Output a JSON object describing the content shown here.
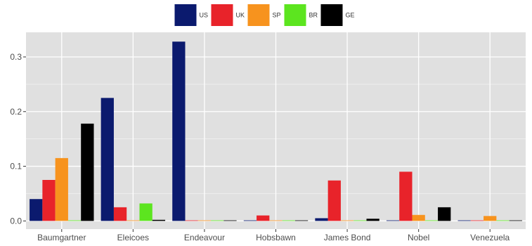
{
  "chart_data": {
    "type": "bar",
    "categories": [
      "Baumgartner",
      "Eleicoes",
      "Endeavour",
      "Hobsbawn",
      "James Bond",
      "Nobel",
      "Venezuela"
    ],
    "series": [
      {
        "name": "US",
        "color": "#0b1a6e",
        "values": [
          0.04,
          0.225,
          0.328,
          0.0,
          0.005,
          0.0,
          0.0
        ]
      },
      {
        "name": "UK",
        "color": "#e8232a",
        "values": [
          0.075,
          0.025,
          0.0,
          0.01,
          0.074,
          0.09,
          0.0
        ]
      },
      {
        "name": "SP",
        "color": "#f7931e",
        "values": [
          0.115,
          0.0,
          0.0,
          0.0,
          0.0,
          0.011,
          0.009
        ]
      },
      {
        "name": "BR",
        "color": "#5ce51f",
        "values": [
          0.0,
          0.032,
          0.0,
          0.0,
          0.0,
          0.0,
          0.0
        ]
      },
      {
        "name": "GE",
        "color": "#000000",
        "values": [
          0.178,
          0.002,
          0.0,
          0.0,
          0.004,
          0.025,
          0.0
        ]
      }
    ],
    "yticks": [
      "0.0",
      "0.1",
      "0.2",
      "0.3"
    ],
    "ytick_values": [
      0.0,
      0.1,
      0.2,
      0.3
    ],
    "ylim": [
      -0.015,
      0.345
    ],
    "title": "",
    "xlabel": "",
    "ylabel": "",
    "grid": true,
    "legend_position": "top",
    "panel_background": "#e0e0e0",
    "grid_color": "#ffffff"
  }
}
